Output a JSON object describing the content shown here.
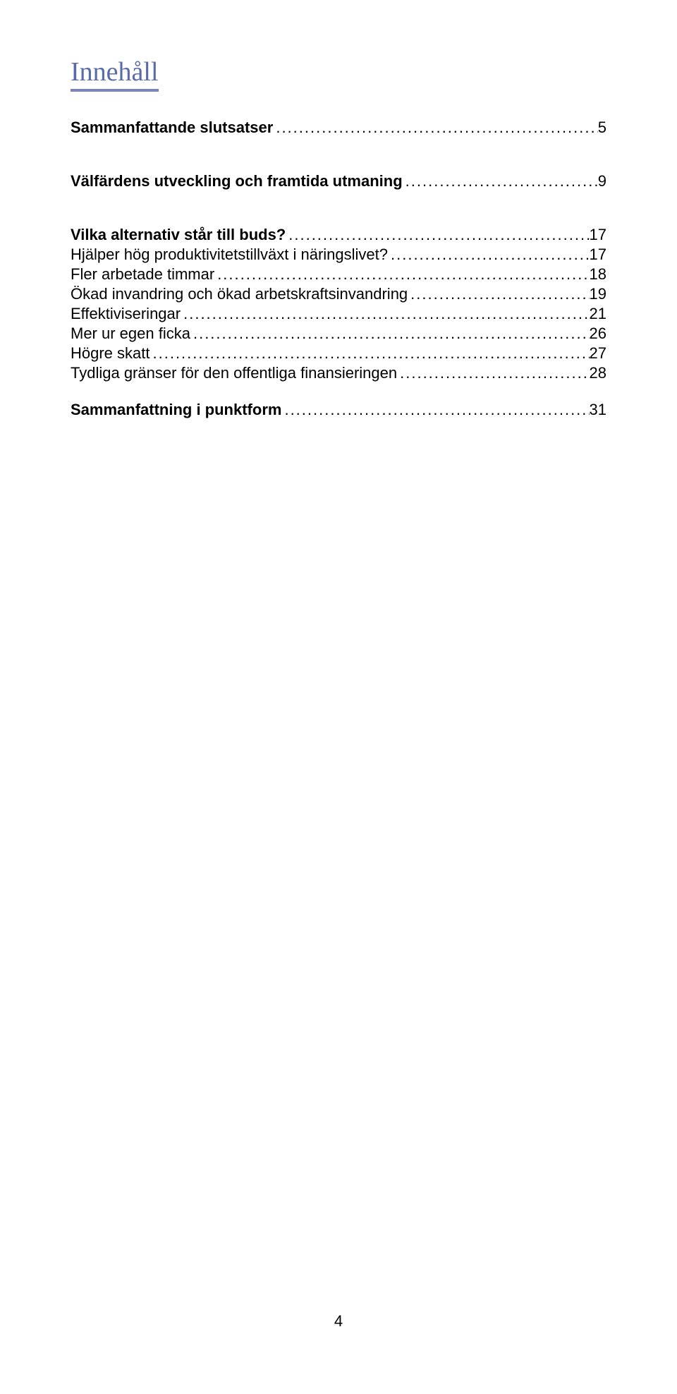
{
  "title": "Innehåll",
  "toc": {
    "entries": [
      {
        "label": "Sammanfattande slutsatser",
        "page": "5",
        "bold": true,
        "gapAfter": true
      },
      {
        "label": "Välfärdens utveckling och framtida utmaning",
        "page": "9",
        "bold": true,
        "gapAfter": true
      },
      {
        "label": "Vilka alternativ står till buds?",
        "page": "17",
        "bold": true,
        "gapAfter": false
      },
      {
        "label": "Hjälper hög produktivitetstillväxt i näringslivet?",
        "page": "17",
        "bold": false,
        "gapAfter": false
      },
      {
        "label": "Fler arbetade timmar",
        "page": "18",
        "bold": false,
        "gapAfter": false
      },
      {
        "label": "Ökad invandring och ökad arbetskraftsinvandring",
        "page": "19",
        "bold": false,
        "gapAfter": false
      },
      {
        "label": "Effektiviseringar",
        "page": "21",
        "bold": false,
        "gapAfter": false
      },
      {
        "label": "Mer ur egen ficka",
        "page": "26",
        "bold": false,
        "gapAfter": false
      },
      {
        "label": "Högre skatt",
        "page": "27",
        "bold": false,
        "gapAfter": false
      },
      {
        "label": "Tydliga gränser för den offentliga finansieringen",
        "page": "28",
        "bold": false,
        "gapAfter": true
      },
      {
        "label": "Sammanfattning i punktform",
        "page": "31",
        "bold": true,
        "gapAfter": false
      }
    ]
  },
  "pageNumber": "4",
  "colors": {
    "title": "#5a6ba8",
    "underline": "#7a85b8",
    "text": "#000000",
    "background": "#ffffff"
  },
  "typography": {
    "titleFontFamily": "Times New Roman",
    "titleFontSize": 38,
    "bodyFontFamily": "Arial",
    "bodyFontSize": 22
  }
}
